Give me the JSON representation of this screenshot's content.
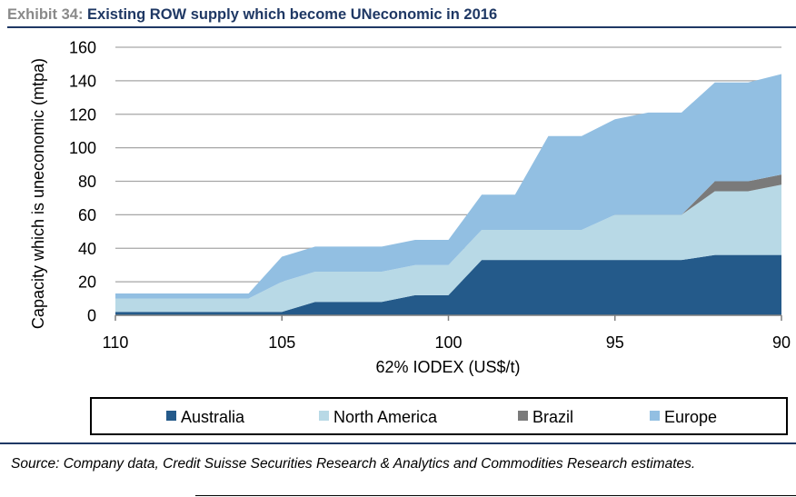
{
  "header": {
    "exhibit_label": "Exhibit 34:",
    "title": "Existing ROW  supply which become UNeconomic in 2016"
  },
  "chart_data": {
    "type": "area",
    "stacked": true,
    "title": "Existing ROW  supply which become UNeconomic in 2016",
    "xlabel": "62% IODEX (US$/t)",
    "ylabel": "Capacity which is uneconomic (mtpa)",
    "xlim": [
      110,
      90
    ],
    "ylim": [
      0,
      160
    ],
    "x_ticks": [
      110,
      105,
      100,
      95,
      90
    ],
    "y_ticks": [
      0,
      20,
      40,
      60,
      80,
      100,
      120,
      140,
      160
    ],
    "grid": true,
    "legend_position": "bottom",
    "x": [
      110,
      109,
      108,
      107,
      106,
      105,
      104,
      103,
      102,
      101,
      100,
      99,
      98,
      97,
      96,
      95,
      94,
      93,
      92,
      91,
      90
    ],
    "series": [
      {
        "name": "Australia",
        "color": "#245a8a",
        "values": [
          2,
          2,
          2,
          2,
          2,
          2,
          8,
          8,
          8,
          12,
          12,
          33,
          33,
          33,
          33,
          33,
          33,
          33,
          36,
          36,
          36
        ]
      },
      {
        "name": "North America",
        "color": "#b8d9e6",
        "values": [
          8,
          8,
          8,
          8,
          8,
          18,
          18,
          18,
          18,
          18,
          18,
          18,
          18,
          18,
          18,
          27,
          27,
          27,
          38,
          38,
          42
        ]
      },
      {
        "name": "Brazil",
        "color": "#7a7a7a",
        "values": [
          0,
          0,
          0,
          0,
          0,
          0,
          0,
          0,
          0,
          0,
          0,
          0,
          0,
          0,
          0,
          0,
          0,
          0,
          6,
          6,
          6
        ]
      },
      {
        "name": "Europe",
        "color": "#92bfe2",
        "values": [
          3,
          3,
          3,
          3,
          3,
          15,
          15,
          15,
          15,
          15,
          15,
          21,
          21,
          56,
          56,
          57,
          61,
          61,
          59,
          59,
          60
        ]
      }
    ]
  },
  "footer": {
    "source": "Source: Company data, Credit Suisse Securities Research & Analytics and Commodities Research estimates."
  }
}
